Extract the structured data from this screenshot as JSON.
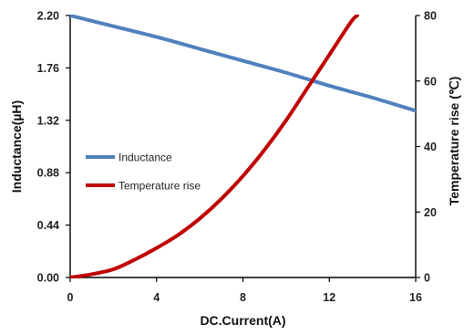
{
  "chart_data": {
    "type": "line",
    "xlabel": "DC.Current(A)",
    "ylabel_left": "Inductance(µH)",
    "ylabel_right": "Temperature rise (℃)",
    "x_range": [
      0,
      16
    ],
    "x_ticks": [
      "0",
      "4",
      "8",
      "12",
      "16"
    ],
    "y_left_range": [
      0,
      2.2
    ],
    "y_left_ticks": [
      "0.00",
      "0.44",
      "0.88",
      "1.32",
      "1.76",
      "2.20"
    ],
    "y_right_range": [
      0,
      80
    ],
    "y_right_ticks": [
      "0",
      "20",
      "40",
      "60",
      "80"
    ],
    "grid": false,
    "legend_position": "center-left",
    "series": [
      {
        "name": "Inductance",
        "axis": "left",
        "color": "#4f81bd",
        "x": [
          0,
          2,
          4,
          6,
          8,
          10,
          12,
          14,
          16
        ],
        "y": [
          2.2,
          2.11,
          2.02,
          1.92,
          1.82,
          1.72,
          1.61,
          1.51,
          1.4
        ]
      },
      {
        "name": "Temperature rise",
        "axis": "right",
        "color": "#c00000",
        "x": [
          0,
          1,
          2,
          3,
          4,
          5,
          6,
          7,
          8,
          9,
          10,
          11,
          12,
          13,
          13.3
        ],
        "y": [
          0,
          1,
          2.5,
          5.5,
          9,
          13,
          18,
          24,
          31,
          39,
          48,
          58,
          68,
          78,
          80
        ]
      }
    ]
  }
}
